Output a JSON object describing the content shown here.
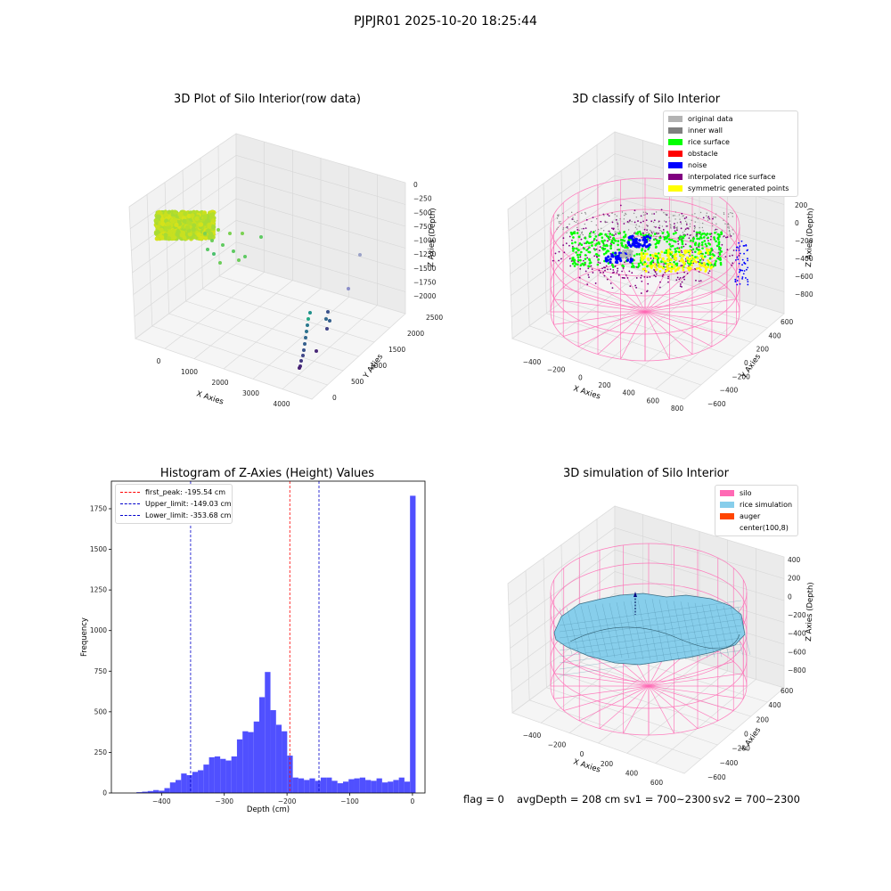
{
  "figure": {
    "suptitle": "PJPJR01 2025-10-20 18:25:44",
    "status": {
      "flag": "flag = 0",
      "avg_depth": "avgDepth = 208 cm",
      "sv1": "sv1 = 700~2300",
      "sv2": "sv2 = 700~2300"
    }
  },
  "chart_data": [
    {
      "type": "scatter",
      "projection": "3d",
      "title": "3D Plot of Silo Interior(row data)",
      "xlabel": "X Axies",
      "ylabel": "Y Axies",
      "zlabel": "Z Axies (Depth)",
      "x_ticks": [
        "0",
        "1000",
        "2000",
        "3000",
        "4000"
      ],
      "y_ticks": [
        "0",
        "500",
        "1000",
        "1500",
        "2000",
        "2500"
      ],
      "z_ticks": [
        "0",
        "−250",
        "−500",
        "−750",
        "−1000",
        "−1250",
        "−1500",
        "−1750",
        "−2000"
      ],
      "colormap": "viridis"
    },
    {
      "type": "scatter",
      "projection": "3d",
      "title": "3D classify of Silo Interior",
      "xlabel": "X Axies",
      "ylabel": "Y Axies",
      "zlabel": "Z Axies (Depth)",
      "x_ticks": [
        "−400",
        "−200",
        "0",
        "200",
        "400",
        "600",
        "800"
      ],
      "y_ticks": [
        "−600",
        "−400",
        "−200",
        "0",
        "200",
        "400",
        "600"
      ],
      "z_ticks": [
        "200",
        "0",
        "−200",
        "−400",
        "−600",
        "−800"
      ],
      "legend_position": "top-right",
      "legend": [
        {
          "label": "original data",
          "color": "#b3b3b3"
        },
        {
          "label": "inner wall",
          "color": "#808080"
        },
        {
          "label": "rice surface",
          "color": "#00ff00"
        },
        {
          "label": "obstacle",
          "color": "#ff0000"
        },
        {
          "label": "noise",
          "color": "#0000ff"
        },
        {
          "label": "interpolated rice surface",
          "color": "#800080"
        },
        {
          "label": "symmetric generated points",
          "color": "#ffff00"
        }
      ],
      "silo_wire_color": "#ff69b4"
    },
    {
      "type": "bar",
      "title": "Histogram of Z-Axies (Height) Values",
      "xlabel": "Depth (cm)",
      "ylabel": "Frequency",
      "xlim": [
        -480,
        20
      ],
      "ylim": [
        0,
        1920
      ],
      "x_ticks": [
        -400,
        -300,
        -200,
        -100,
        0
      ],
      "y_ticks": [
        0,
        250,
        500,
        750,
        1000,
        1250,
        1500,
        1750
      ],
      "bin_width": 8.9,
      "bins": [
        {
          "x0": -440,
          "value": 5
        },
        {
          "x0": -431.1,
          "value": 8
        },
        {
          "x0": -422.2,
          "value": 12
        },
        {
          "x0": -413.3,
          "value": 18
        },
        {
          "x0": -404.4,
          "value": 14
        },
        {
          "x0": -395.5,
          "value": 30
        },
        {
          "x0": -386.6,
          "value": 65
        },
        {
          "x0": -377.7,
          "value": 80
        },
        {
          "x0": -368.8,
          "value": 120
        },
        {
          "x0": -359.9,
          "value": 110
        },
        {
          "x0": -351,
          "value": 130
        },
        {
          "x0": -342.1,
          "value": 140
        },
        {
          "x0": -333.2,
          "value": 175
        },
        {
          "x0": -324.3,
          "value": 220
        },
        {
          "x0": -315.4,
          "value": 225
        },
        {
          "x0": -306.5,
          "value": 210
        },
        {
          "x0": -297.6,
          "value": 200
        },
        {
          "x0": -288.7,
          "value": 225
        },
        {
          "x0": -279.8,
          "value": 330
        },
        {
          "x0": -270.9,
          "value": 380
        },
        {
          "x0": -262,
          "value": 375
        },
        {
          "x0": -253.1,
          "value": 440
        },
        {
          "x0": -244.2,
          "value": 590
        },
        {
          "x0": -235.3,
          "value": 745
        },
        {
          "x0": -226.4,
          "value": 510
        },
        {
          "x0": -217.5,
          "value": 420
        },
        {
          "x0": -208.6,
          "value": 380
        },
        {
          "x0": -199.7,
          "value": 230
        },
        {
          "x0": -190.8,
          "value": 95
        },
        {
          "x0": -181.9,
          "value": 90
        },
        {
          "x0": -173,
          "value": 80
        },
        {
          "x0": -164.1,
          "value": 90
        },
        {
          "x0": -155.2,
          "value": 75
        },
        {
          "x0": -146.3,
          "value": 95
        },
        {
          "x0": -137.4,
          "value": 95
        },
        {
          "x0": -128.5,
          "value": 75
        },
        {
          "x0": -119.6,
          "value": 60
        },
        {
          "x0": -110.7,
          "value": 70
        },
        {
          "x0": -101.8,
          "value": 85
        },
        {
          "x0": -92.9,
          "value": 90
        },
        {
          "x0": -84,
          "value": 95
        },
        {
          "x0": -75.1,
          "value": 80
        },
        {
          "x0": -66.2,
          "value": 75
        },
        {
          "x0": -57.3,
          "value": 90
        },
        {
          "x0": -48.4,
          "value": 65
        },
        {
          "x0": -39.5,
          "value": 70
        },
        {
          "x0": -30.6,
          "value": 80
        },
        {
          "x0": -21.7,
          "value": 95
        },
        {
          "x0": -12.8,
          "value": 70
        },
        {
          "x0": -3.9,
          "value": 1830
        }
      ],
      "bar_color": "#5050ff",
      "vlines": [
        {
          "label": "first_peak: -195.54 cm",
          "x": -195.54,
          "color": "#ff0000"
        },
        {
          "label": "Upper_limit: -149.03 cm",
          "x": -149.03,
          "color": "#0000cc"
        },
        {
          "label": "Lower_limit: -353.68 cm",
          "x": -353.68,
          "color": "#0000cc"
        }
      ],
      "legend_position": "top-left"
    },
    {
      "type": "surface",
      "projection": "3d",
      "title": "3D simulation of Silo Interior",
      "xlabel": "X Axies",
      "ylabel": "Y Axies",
      "zlabel": "Z Axies (Depth)",
      "x_ticks": [
        "−400",
        "−200",
        "0",
        "200",
        "400",
        "600"
      ],
      "y_ticks": [
        "−600",
        "−400",
        "−200",
        "0",
        "200",
        "400",
        "600"
      ],
      "z_ticks": [
        "400",
        "200",
        "0",
        "−200",
        "−400",
        "−600",
        "−800"
      ],
      "legend_position": "top-right",
      "legend": [
        {
          "label": "silo",
          "color": "#ff69b4"
        },
        {
          "label": "rice simulation",
          "color": "#87ceeb"
        },
        {
          "label": "auger",
          "color": "#ff4500"
        },
        {
          "label": "center(100,8)",
          "color": "#ffffff"
        }
      ]
    }
  ]
}
